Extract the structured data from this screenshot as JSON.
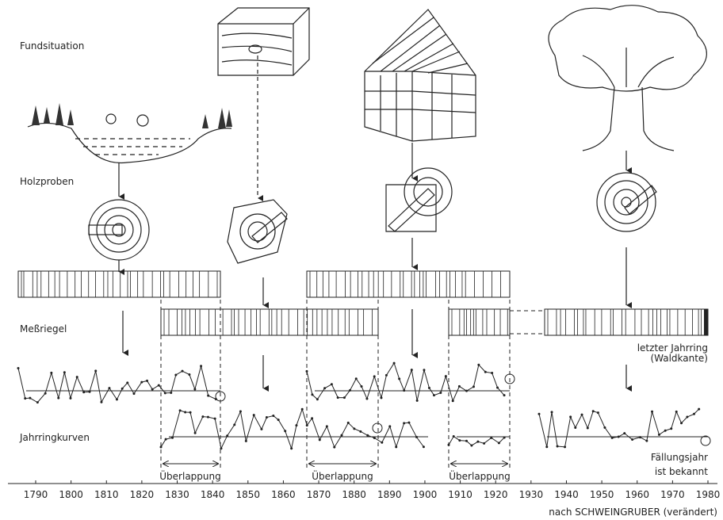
{
  "labels": {
    "fundsituation": "Fundsituation",
    "holzproben": "Holzproben",
    "messriegel": "Meßriegel",
    "jahrringkurven": "Jahrringkurven"
  },
  "annotations": {
    "last_ring": [
      "letzter Jahrring",
      "(Waldkante)"
    ],
    "felling": [
      "Fällungsjahr",
      "ist bekannt"
    ]
  },
  "overlaps": [
    "Überlappung",
    "Überlappung",
    "Überlappung"
  ],
  "axis": {
    "ticks": [
      "1790",
      "1800",
      "1810",
      "1820",
      "1830",
      "1840",
      "1850",
      "1860",
      "1870",
      "1880",
      "1890",
      "1900",
      "1910",
      "1920",
      "1930",
      "1940",
      "1950",
      "1960",
      "1970",
      "1980"
    ]
  },
  "credit": "nach SCHWEINGRUBER (verändert)"
}
